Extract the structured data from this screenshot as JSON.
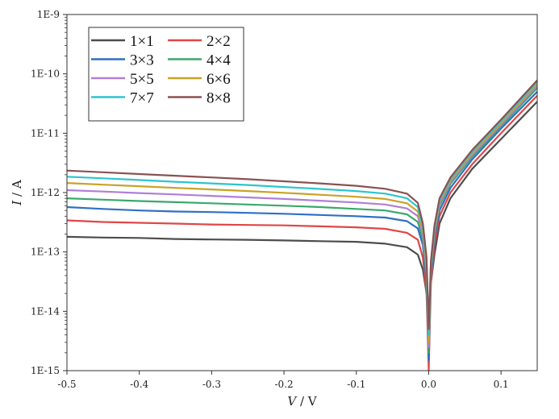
{
  "chart_data": {
    "type": "line",
    "xlabel": {
      "var": "V",
      "unit": "V"
    },
    "ylabel": {
      "var": "I",
      "unit": "A"
    },
    "xlim": [
      -0.5,
      0.15
    ],
    "ylim": [
      1e-15,
      1e-09
    ],
    "yscale": "log",
    "grid": false,
    "legend_position": "top-left",
    "xticks": [
      -0.5,
      -0.4,
      -0.3,
      -0.2,
      -0.1,
      0.0,
      0.1
    ],
    "xtick_labels": [
      "-0.5",
      "-0.4",
      "-0.3",
      "-0.2",
      "-0.1",
      "0.0",
      "0.1"
    ],
    "yticks": [
      1e-15,
      1e-14,
      1e-13,
      1e-12,
      1e-11,
      1e-10,
      1e-09
    ],
    "ytick_labels": [
      "1E-15",
      "1E-14",
      "1E-13",
      "1E-12",
      "1E-11",
      "1E-10",
      "1E-9"
    ],
    "x": [
      -0.5,
      -0.45,
      -0.4,
      -0.35,
      -0.3,
      -0.25,
      -0.2,
      -0.15,
      -0.1,
      -0.06,
      -0.03,
      -0.015,
      -0.008,
      -0.003,
      0.0,
      0.003,
      0.008,
      0.015,
      0.03,
      0.06,
      0.1,
      0.15
    ],
    "series": [
      {
        "name": "1×1",
        "color": "#4d4d4d",
        "values": [
          1.8e-13,
          1.75e-13,
          1.72e-13,
          1.65e-13,
          1.62e-13,
          1.6e-13,
          1.56e-13,
          1.52e-13,
          1.48e-13,
          1.38e-13,
          1.2e-13,
          9e-14,
          5e-14,
          2e-14,
          9e-15,
          3e-14,
          9e-14,
          3e-13,
          8e-13,
          2.5e-12,
          8e-12,
          3.4e-11
        ]
      },
      {
        "name": "2×2",
        "color": "#e04646",
        "values": [
          3.4e-13,
          3.2e-13,
          3.1e-13,
          3e-13,
          2.9e-13,
          2.85e-13,
          2.8e-13,
          2.7e-13,
          2.6e-13,
          2.45e-13,
          2.1e-13,
          1.6e-13,
          8e-14,
          2e-14,
          1e-15,
          3e-14,
          1.3e-13,
          4e-13,
          1e-12,
          3e-12,
          1e-11,
          4.3e-11
        ]
      },
      {
        "name": "3×3",
        "color": "#2f6fc4",
        "values": [
          5.7e-13,
          5.3e-13,
          5e-13,
          4.8e-13,
          4.7e-13,
          4.55e-13,
          4.4e-13,
          4.2e-13,
          4e-13,
          3.8e-13,
          3.3e-13,
          2.5e-13,
          1.3e-13,
          3e-14,
          1.5e-15,
          4e-14,
          1.7e-13,
          5e-13,
          1.2e-12,
          3.6e-12,
          1.2e-11,
          5e-11
        ]
      },
      {
        "name": "4×4",
        "color": "#3aa86b",
        "values": [
          8e-13,
          7.6e-13,
          7.2e-13,
          6.9e-13,
          6.6e-13,
          6.3e-13,
          6e-13,
          5.7e-13,
          5.3e-13,
          5e-13,
          4.3e-13,
          3.2e-13,
          1.6e-13,
          4e-14,
          2e-15,
          5e-14,
          2e-13,
          6e-13,
          1.4e-12,
          4e-12,
          1.3e-11,
          5.8e-11
        ]
      },
      {
        "name": "5×5",
        "color": "#b07fd6",
        "values": [
          1.1e-12,
          1.04e-12,
          9.8e-13,
          9.3e-13,
          8.8e-13,
          8.3e-13,
          7.8e-13,
          7.3e-13,
          6.8e-13,
          6.3e-13,
          5.4e-13,
          4e-13,
          1.9e-13,
          5e-14,
          2.5e-15,
          5.5e-14,
          2.2e-13,
          6.5e-13,
          1.5e-12,
          4.3e-12,
          1.4e-11,
          6.3e-11
        ]
      },
      {
        "name": "6×6",
        "color": "#c9a227",
        "values": [
          1.45e-12,
          1.36e-12,
          1.28e-12,
          1.2e-12,
          1.13e-12,
          1.06e-12,
          9.9e-13,
          9.2e-13,
          8.5e-13,
          7.8e-13,
          6.6e-13,
          4.8e-13,
          2.2e-13,
          6e-14,
          3e-15,
          6e-14,
          2.4e-13,
          7e-13,
          1.6e-12,
          4.6e-12,
          1.5e-11,
          6.8e-11
        ]
      },
      {
        "name": "7×7",
        "color": "#2ec4cf",
        "values": [
          1.85e-12,
          1.74e-12,
          1.63e-12,
          1.52e-12,
          1.43e-12,
          1.34e-12,
          1.24e-12,
          1.15e-12,
          1.06e-12,
          9.6e-13,
          8e-13,
          5.7e-13,
          2.6e-13,
          7e-14,
          4e-15,
          6.5e-14,
          2.6e-13,
          7.5e-13,
          1.7e-12,
          4.9e-12,
          1.6e-11,
          7.3e-11
        ]
      },
      {
        "name": "8×8",
        "color": "#8a5252",
        "values": [
          2.35e-12,
          2.2e-12,
          2.05e-12,
          1.92e-12,
          1.8e-12,
          1.68e-12,
          1.55e-12,
          1.43e-12,
          1.3e-12,
          1.16e-12,
          9.6e-13,
          6.7e-13,
          3e-13,
          8e-14,
          5e-15,
          7e-14,
          2.8e-13,
          8e-13,
          1.8e-12,
          5.2e-12,
          1.7e-11,
          7.8e-11
        ]
      }
    ]
  }
}
